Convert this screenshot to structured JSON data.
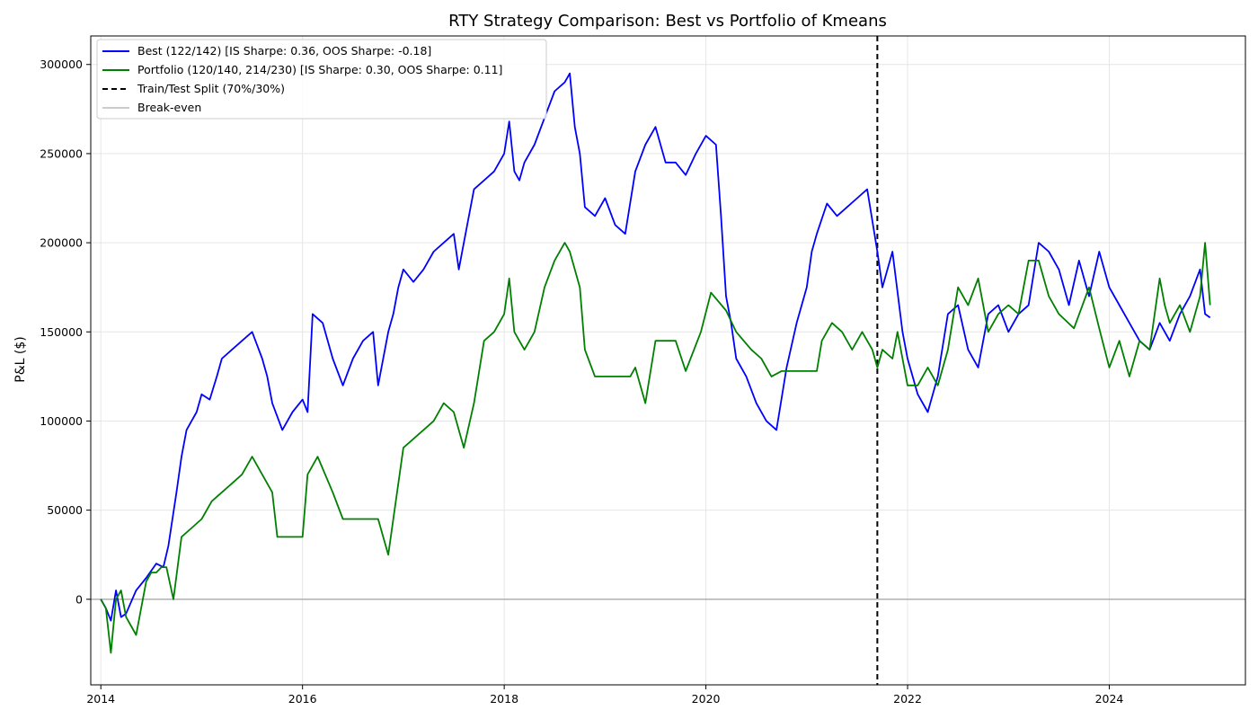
{
  "chart_data": {
    "type": "line",
    "title": "RTY Strategy Comparison: Best vs Portfolio of Kmeans",
    "xlabel": "",
    "ylabel": "P&L ($)",
    "xlim": [
      2013.9,
      2025.35
    ],
    "ylim": [
      -48000,
      316000
    ],
    "x_ticks": [
      2014,
      2016,
      2018,
      2020,
      2022,
      2024
    ],
    "y_ticks": [
      0,
      50000,
      100000,
      150000,
      200000,
      250000,
      300000
    ],
    "grid": true,
    "legend_position": "top-left",
    "split_x": 2021.7,
    "split_label": "Train/Test Split (70%/30%)",
    "breakeven_y": 0,
    "breakeven_label": "Break-even",
    "series": [
      {
        "name": "Best (122/142) [IS Sharpe: 0.36, OOS Sharpe: -0.18]",
        "color": "#0000ff",
        "x": [
          2014.0,
          2014.05,
          2014.1,
          2014.15,
          2014.2,
          2014.25,
          2014.35,
          2014.45,
          2014.55,
          2014.62,
          2014.67,
          2014.75,
          2014.8,
          2014.85,
          2014.9,
          2014.95,
          2015.0,
          2015.08,
          2015.15,
          2015.2,
          2015.3,
          2015.4,
          2015.5,
          2015.6,
          2015.65,
          2015.7,
          2015.8,
          2015.9,
          2016.0,
          2016.05,
          2016.1,
          2016.2,
          2016.3,
          2016.4,
          2016.5,
          2016.6,
          2016.7,
          2016.75,
          2016.85,
          2016.9,
          2016.95,
          2017.0,
          2017.1,
          2017.2,
          2017.3,
          2017.4,
          2017.5,
          2017.55,
          2017.6,
          2017.7,
          2017.8,
          2017.9,
          2018.0,
          2018.05,
          2018.1,
          2018.15,
          2018.2,
          2018.3,
          2018.4,
          2018.5,
          2018.6,
          2018.65,
          2018.7,
          2018.75,
          2018.8,
          2018.9,
          2019.0,
          2019.1,
          2019.2,
          2019.3,
          2019.4,
          2019.5,
          2019.6,
          2019.7,
          2019.8,
          2019.9,
          2020.0,
          2020.1,
          2020.15,
          2020.2,
          2020.25,
          2020.3,
          2020.4,
          2020.5,
          2020.6,
          2020.7,
          2020.8,
          2020.9,
          2021.0,
          2021.05,
          2021.1,
          2021.2,
          2021.3,
          2021.4,
          2021.5,
          2021.6,
          2021.7,
          2021.75,
          2021.85,
          2021.95,
          2022.0,
          2022.1,
          2022.2,
          2022.3,
          2022.4,
          2022.5,
          2022.6,
          2022.7,
          2022.8,
          2022.9,
          2023.0,
          2023.1,
          2023.2,
          2023.3,
          2023.4,
          2023.5,
          2023.6,
          2023.7,
          2023.8,
          2023.9,
          2024.0,
          2024.1,
          2024.2,
          2024.3,
          2024.4,
          2024.5,
          2024.6,
          2024.7,
          2024.8,
          2024.9,
          2024.95,
          2025.0
        ],
        "values": [
          0,
          -5000,
          -12000,
          5000,
          -10000,
          -8000,
          5000,
          12000,
          20000,
          18000,
          30000,
          60000,
          80000,
          95000,
          100000,
          105000,
          115000,
          112000,
          125000,
          135000,
          140000,
          145000,
          150000,
          135000,
          125000,
          110000,
          95000,
          105000,
          112000,
          105000,
          160000,
          155000,
          135000,
          120000,
          135000,
          145000,
          150000,
          120000,
          150000,
          160000,
          175000,
          185000,
          178000,
          185000,
          195000,
          200000,
          205000,
          185000,
          200000,
          230000,
          235000,
          240000,
          250000,
          268000,
          240000,
          235000,
          245000,
          255000,
          270000,
          285000,
          290000,
          295000,
          265000,
          250000,
          220000,
          215000,
          225000,
          210000,
          205000,
          240000,
          255000,
          265000,
          245000,
          245000,
          238000,
          250000,
          260000,
          255000,
          215000,
          170000,
          155000,
          135000,
          125000,
          110000,
          100000,
          95000,
          130000,
          155000,
          175000,
          195000,
          205000,
          222000,
          215000,
          220000,
          225000,
          230000,
          195000,
          175000,
          195000,
          150000,
          135000,
          115000,
          105000,
          125000,
          160000,
          165000,
          140000,
          130000,
          160000,
          165000,
          150000,
          160000,
          165000,
          200000,
          195000,
          185000,
          165000,
          190000,
          170000,
          195000,
          175000,
          165000,
          155000,
          145000,
          140000,
          155000,
          145000,
          160000,
          170000,
          185000,
          160000,
          158000
        ]
      },
      {
        "name": "Portfolio (120/140, 214/230) [IS Sharpe: 0.30, OOS Sharpe: 0.11]",
        "color": "#008000",
        "x": [
          2014.0,
          2014.05,
          2014.1,
          2014.15,
          2014.2,
          2014.25,
          2014.3,
          2014.35,
          2014.45,
          2014.5,
          2014.55,
          2014.6,
          2014.65,
          2014.72,
          2014.8,
          2014.9,
          2015.0,
          2015.1,
          2015.2,
          2015.3,
          2015.4,
          2015.5,
          2015.6,
          2015.7,
          2015.75,
          2016.0,
          2016.05,
          2016.15,
          2016.3,
          2016.4,
          2016.5,
          2016.6,
          2016.75,
          2016.85,
          2016.9,
          2017.0,
          2017.1,
          2017.2,
          2017.3,
          2017.4,
          2017.5,
          2017.6,
          2017.7,
          2017.8,
          2017.9,
          2018.0,
          2018.05,
          2018.1,
          2018.2,
          2018.3,
          2018.4,
          2018.5,
          2018.6,
          2018.65,
          2018.75,
          2018.8,
          2018.9,
          2019.0,
          2019.25,
          2019.3,
          2019.4,
          2019.5,
          2019.7,
          2019.8,
          2019.95,
          2020.05,
          2020.2,
          2020.3,
          2020.45,
          2020.55,
          2020.65,
          2020.75,
          2020.85,
          2021.1,
          2021.15,
          2021.25,
          2021.35,
          2021.45,
          2021.55,
          2021.65,
          2021.7,
          2021.75,
          2021.85,
          2021.9,
          2022.0,
          2022.1,
          2022.2,
          2022.3,
          2022.4,
          2022.5,
          2022.6,
          2022.7,
          2022.8,
          2022.9,
          2023.0,
          2023.1,
          2023.2,
          2023.3,
          2023.4,
          2023.5,
          2023.65,
          2023.8,
          2023.9,
          2024.0,
          2024.1,
          2024.2,
          2024.3,
          2024.4,
          2024.5,
          2024.55,
          2024.6,
          2024.7,
          2024.8,
          2024.9,
          2024.95,
          2025.0
        ],
        "values": [
          0,
          -5000,
          -30000,
          0,
          5000,
          -10000,
          -15000,
          -20000,
          10000,
          15000,
          15000,
          18000,
          18000,
          0,
          35000,
          40000,
          45000,
          55000,
          60000,
          65000,
          70000,
          80000,
          70000,
          60000,
          35000,
          35000,
          70000,
          80000,
          60000,
          45000,
          45000,
          45000,
          45000,
          25000,
          45000,
          85000,
          90000,
          95000,
          100000,
          110000,
          105000,
          85000,
          110000,
          145000,
          150000,
          160000,
          180000,
          150000,
          140000,
          150000,
          175000,
          190000,
          200000,
          195000,
          175000,
          140000,
          125000,
          125000,
          125000,
          130000,
          110000,
          145000,
          145000,
          128000,
          150000,
          172000,
          162000,
          150000,
          140000,
          135000,
          125000,
          128000,
          128000,
          128000,
          145000,
          155000,
          150000,
          140000,
          150000,
          140000,
          130000,
          140000,
          135000,
          150000,
          120000,
          120000,
          130000,
          120000,
          140000,
          175000,
          165000,
          180000,
          150000,
          160000,
          165000,
          160000,
          190000,
          190000,
          170000,
          160000,
          152000,
          175000,
          152000,
          130000,
          145000,
          125000,
          145000,
          140000,
          180000,
          165000,
          155000,
          165000,
          150000,
          170000,
          200000,
          165000
        ]
      }
    ]
  }
}
